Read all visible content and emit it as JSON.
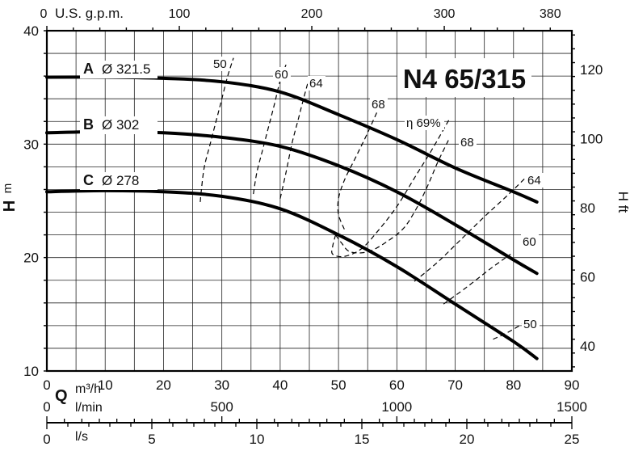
{
  "chart_data": {
    "type": "line",
    "title": "N4 65/315",
    "x_axes": {
      "usgpm": {
        "label": "U.S. g.p.m.",
        "ticks": [
          0,
          100,
          200,
          300,
          380
        ],
        "range": [
          0,
          396.3
        ]
      },
      "m3h": {
        "label_q": "Q",
        "label": "m³/h",
        "ticks": [
          0,
          10,
          20,
          30,
          40,
          50,
          60,
          70,
          80,
          90
        ],
        "range": [
          0,
          90
        ]
      },
      "lmin": {
        "label": "l/min",
        "ticks": [
          0,
          500,
          1000,
          1500
        ],
        "range": [
          0,
          1500
        ]
      },
      "ls": {
        "label": "l/s",
        "ticks": [
          0,
          5,
          10,
          15,
          20,
          25
        ],
        "range": [
          0,
          25
        ]
      }
    },
    "y_axes": {
      "m": {
        "label_h": "H",
        "label_unit": "m",
        "ticks": [
          10,
          20,
          30,
          40
        ],
        "range": [
          10,
          40
        ]
      },
      "ft": {
        "label": "H ft",
        "ticks": [
          40,
          60,
          80,
          100,
          120
        ],
        "range": [
          32.8,
          131.2
        ]
      }
    },
    "grid": true,
    "series": [
      {
        "name": "A",
        "label": "A",
        "diameter": "Ø 321.5",
        "points": [
          [
            0,
            35.9
          ],
          [
            10,
            35.9
          ],
          [
            20,
            35.8
          ],
          [
            30,
            35.5
          ],
          [
            40,
            34.6
          ],
          [
            50,
            32.6
          ],
          [
            60,
            30.4
          ],
          [
            70,
            27.9
          ],
          [
            80,
            25.8
          ],
          [
            84,
            24.9
          ]
        ]
      },
      {
        "name": "B",
        "label": "B",
        "diameter": "Ø 302",
        "points": [
          [
            0,
            31
          ],
          [
            10,
            31.1
          ],
          [
            20,
            31
          ],
          [
            30,
            30.6
          ],
          [
            40,
            29.8
          ],
          [
            50,
            28.1
          ],
          [
            60,
            25.8
          ],
          [
            70,
            22.9
          ],
          [
            80,
            19.8
          ],
          [
            84,
            18.6
          ]
        ]
      },
      {
        "name": "C",
        "label": "C",
        "diameter": "Ø 278",
        "points": [
          [
            0,
            25.8
          ],
          [
            10,
            25.9
          ],
          [
            20,
            25.8
          ],
          [
            30,
            25.4
          ],
          [
            40,
            24.3
          ],
          [
            50,
            22
          ],
          [
            60,
            19.2
          ],
          [
            70,
            15.9
          ],
          [
            80,
            12.6
          ],
          [
            84,
            11.1
          ]
        ]
      }
    ],
    "efficiency_curves": [
      {
        "label": "50",
        "points": [
          [
            26.3,
            24.9
          ],
          [
            26.5,
            26
          ],
          [
            27,
            28
          ],
          [
            28,
            30
          ],
          [
            29,
            32
          ],
          [
            30,
            34
          ],
          [
            31,
            36
          ],
          [
            32,
            37.6
          ]
        ]
      },
      {
        "label": "60",
        "points": [
          [
            35.4,
            25.6
          ],
          [
            36,
            27.5
          ],
          [
            37,
            29.5
          ],
          [
            38,
            31.5
          ],
          [
            39,
            33.5
          ],
          [
            40,
            35.6
          ],
          [
            41,
            37
          ]
        ]
      },
      {
        "label": "64",
        "points": [
          [
            40,
            25.2
          ],
          [
            41,
            27.5
          ],
          [
            42,
            30
          ],
          [
            43,
            32
          ],
          [
            44,
            34
          ],
          [
            45,
            35.9
          ]
        ]
      },
      {
        "label": "68",
        "points": [
          [
            51,
            22.5
          ],
          [
            50,
            23.8
          ],
          [
            50,
            25.2
          ],
          [
            51,
            26.8
          ],
          [
            53,
            28.9
          ],
          [
            55,
            31
          ],
          [
            57,
            33.3
          ]
        ]
      },
      {
        "label": "η 69%",
        "points": [
          [
            49.5,
            22
          ],
          [
            50.5,
            21.3
          ],
          [
            52,
            20.5
          ],
          [
            55,
            20.5
          ],
          [
            58,
            21.3
          ],
          [
            61,
            22.5
          ],
          [
            63,
            24
          ],
          [
            65,
            26
          ],
          [
            67,
            28.4
          ],
          [
            69,
            30.5
          ]
        ]
      },
      {
        "label": "68",
        "points": [
          [
            49.5,
            22
          ],
          [
            49,
            21
          ],
          [
            49,
            20.3
          ],
          [
            51,
            20.1
          ],
          [
            54,
            20.8
          ],
          [
            57,
            22.5
          ],
          [
            60,
            24.5
          ],
          [
            63,
            27
          ],
          [
            66,
            29.5
          ],
          [
            69,
            32.2
          ]
        ]
      },
      {
        "label": "64",
        "points": [
          [
            63,
            17.9
          ],
          [
            67,
            19.6
          ],
          [
            71,
            21.6
          ],
          [
            75,
            23.6
          ],
          [
            79,
            25.5
          ],
          [
            82,
            27
          ]
        ]
      },
      {
        "label": "60",
        "points": [
          [
            68,
            15.9
          ],
          [
            72,
            17.4
          ],
          [
            76,
            19
          ],
          [
            79.5,
            20.3
          ]
        ]
      },
      {
        "label": "50",
        "points": [
          [
            76.5,
            12.8
          ],
          [
            79,
            13.4
          ],
          [
            82,
            14.3
          ]
        ]
      }
    ],
    "label_positions_note": ""
  }
}
